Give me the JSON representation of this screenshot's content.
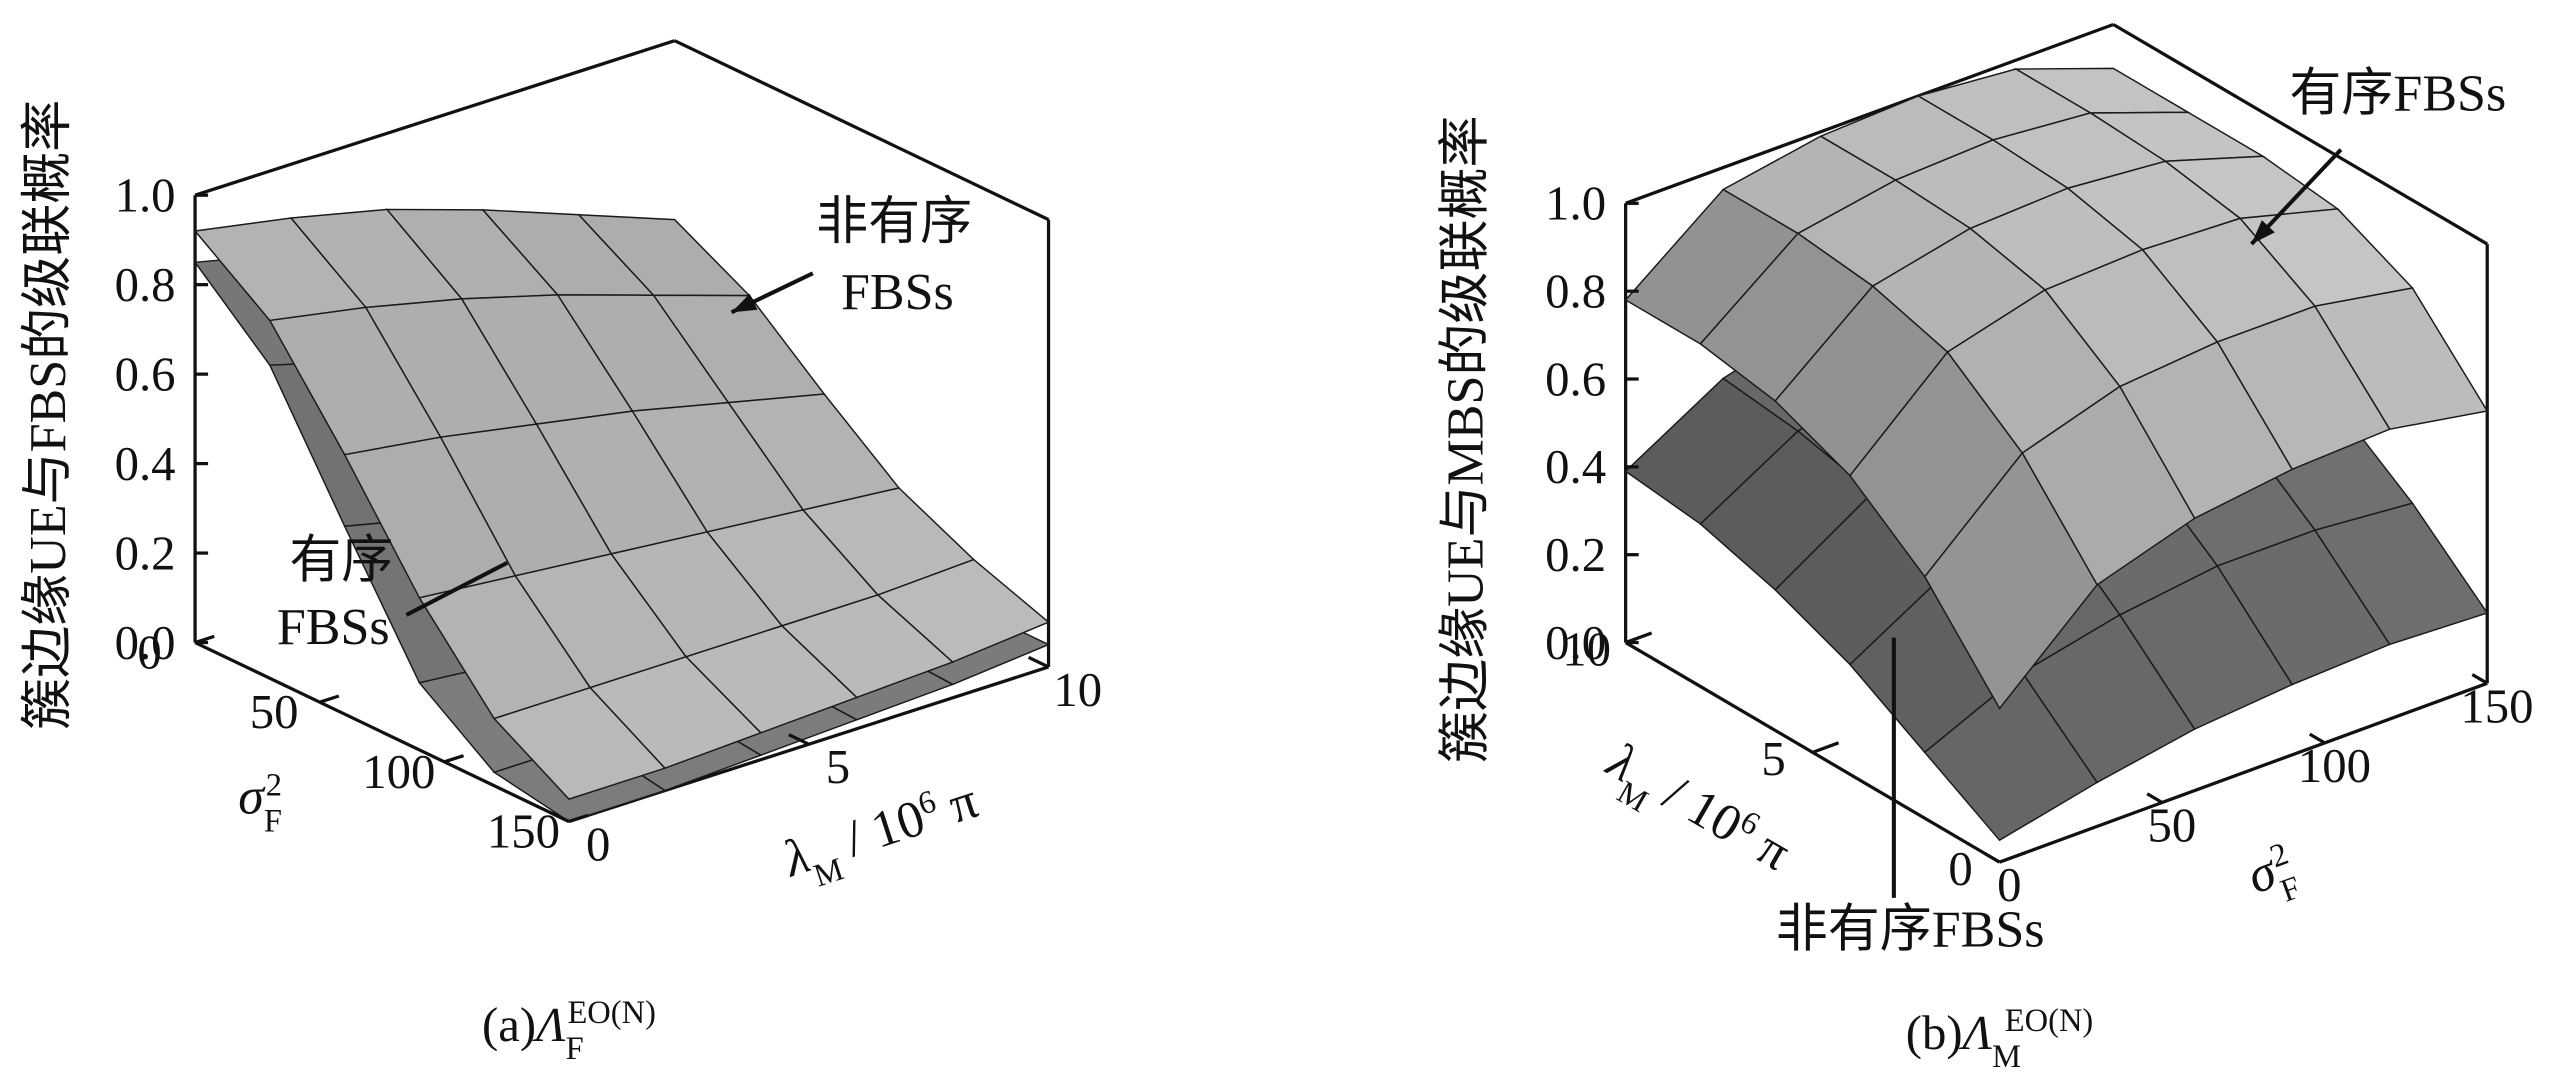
{
  "chart_data": [
    {
      "type": "surface",
      "zlabel": "簇边缘UE与FBS的级联概率",
      "xlabel": [
        "λ",
        "M",
        " / 10",
        "6",
        " π"
      ],
      "ylabel": [
        "σ",
        "F",
        "2"
      ],
      "caption": [
        "(a)",
        "Λ",
        "F",
        "EO(N)"
      ],
      "x": [
        0,
        2,
        4,
        6,
        8,
        10
      ],
      "y": [
        0,
        30,
        60,
        90,
        120,
        150
      ],
      "xlim": [
        0,
        10
      ],
      "ylim": [
        0,
        150
      ],
      "zlim": [
        0,
        1
      ],
      "xticks": [
        0,
        5,
        10
      ],
      "yticks": [
        0,
        50,
        100,
        150
      ],
      "zticks": [
        {
          "value": 0,
          "label": "0.0"
        },
        0.2,
        0.4,
        0.6,
        0.8,
        {
          "value": 1,
          "label": "1.0"
        }
      ],
      "series": [
        {
          "label": [
            "有序",
            "FBSs"
          ],
          "color": "#7a7a7a",
          "values": [
            [
              0.85,
              0.8,
              0.72,
              0.62,
              0.5,
              0.4
            ],
            [
              0.7,
              0.64,
              0.56,
              0.47,
              0.38,
              0.3
            ],
            [
              0.42,
              0.37,
              0.32,
              0.27,
              0.22,
              0.18
            ],
            [
              0.15,
              0.13,
              0.11,
              0.1,
              0.09,
              0.08
            ],
            [
              0.03,
              0.03,
              0.03,
              0.03,
              0.04,
              0.05
            ],
            [
              0.0,
              0.0,
              0.01,
              0.02,
              0.03,
              0.05
            ]
          ]
        },
        {
          "label": [
            "非有序",
            "FBSs"
          ],
          "color": "#b4b4b4",
          "values": [
            [
              0.92,
              0.88,
              0.83,
              0.76,
              0.68,
              0.6
            ],
            [
              0.8,
              0.76,
              0.71,
              0.65,
              0.58,
              0.51
            ],
            [
              0.58,
              0.55,
              0.51,
              0.47,
              0.42,
              0.37
            ],
            [
              0.34,
              0.32,
              0.3,
              0.28,
              0.26,
              0.24
            ],
            [
              0.15,
              0.15,
              0.15,
              0.15,
              0.15,
              0.16
            ],
            [
              0.05,
              0.05,
              0.06,
              0.07,
              0.08,
              0.1
            ]
          ]
        }
      ]
    },
    {
      "type": "surface",
      "zlabel": "簇边缘UE与MBS的级联概率",
      "xlabel": [
        "λ",
        "M",
        " / 10",
        "6",
        " π"
      ],
      "ylabel": [
        "σ",
        "F",
        "2"
      ],
      "caption": [
        "(b)",
        "Λ",
        "M",
        "EO(N)"
      ],
      "x": [
        0,
        2,
        4,
        6,
        8,
        10
      ],
      "y": [
        0,
        30,
        60,
        90,
        120,
        150
      ],
      "xlim": [
        0,
        10
      ],
      "ylim": [
        0,
        150
      ],
      "zlim": [
        0,
        1
      ],
      "xticks": [
        0,
        5,
        10
      ],
      "yticks": [
        0,
        50,
        100,
        150
      ],
      "zticks": [
        {
          "value": 0,
          "label": "0.0"
        },
        0.2,
        0.4,
        0.6,
        0.8,
        {
          "value": 1,
          "label": "1.0"
        }
      ],
      "series": [
        {
          "label": [
            "非有序FBSs"
          ],
          "color": "#6e6e6e",
          "values": [
            [
              0.05,
              0.15,
              0.25,
              0.32,
              0.37,
              0.39
            ],
            [
              0.1,
              0.25,
              0.38,
              0.46,
              0.5,
              0.52
            ],
            [
              0.14,
              0.3,
              0.44,
              0.52,
              0.56,
              0.58
            ],
            [
              0.16,
              0.33,
              0.46,
              0.54,
              0.58,
              0.6
            ],
            [
              0.17,
              0.33,
              0.46,
              0.53,
              0.57,
              0.58
            ],
            [
              0.16,
              0.31,
              0.43,
              0.5,
              0.53,
              0.55
            ]
          ]
        },
        {
          "label": [
            "有序FBSs"
          ],
          "color": "#bdbdbd",
          "values": [
            [
              0.35,
              0.55,
              0.68,
              0.75,
              0.78,
              0.78
            ],
            [
              0.55,
              0.75,
              0.88,
              0.93,
              0.95,
              0.95
            ],
            [
              0.62,
              0.82,
              0.94,
              0.98,
              0.99,
              0.99
            ],
            [
              0.65,
              0.84,
              0.95,
              0.99,
              1.0,
              1.0
            ],
            [
              0.66,
              0.84,
              0.94,
              0.97,
              0.98,
              0.98
            ],
            [
              0.62,
              0.8,
              0.88,
              0.9,
              0.9,
              0.9
            ]
          ]
        }
      ]
    }
  ]
}
